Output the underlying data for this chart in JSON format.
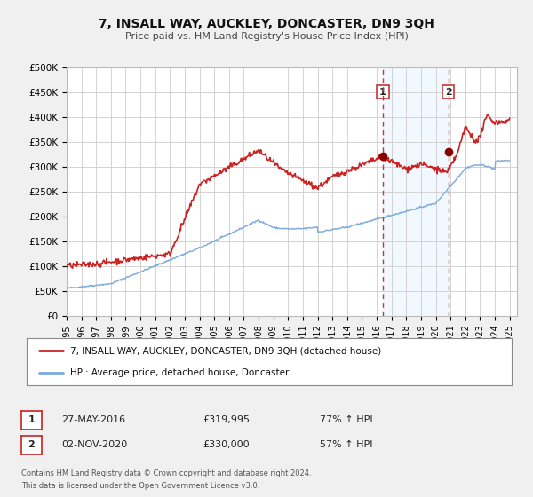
{
  "title": "7, INSALL WAY, AUCKLEY, DONCASTER, DN9 3QH",
  "subtitle": "Price paid vs. HM Land Registry's House Price Index (HPI)",
  "ylim": [
    0,
    500000
  ],
  "yticks": [
    0,
    50000,
    100000,
    150000,
    200000,
    250000,
    300000,
    350000,
    400000,
    450000,
    500000
  ],
  "ytick_labels": [
    "£0",
    "£50K",
    "£100K",
    "£150K",
    "£200K",
    "£250K",
    "£300K",
    "£350K",
    "£400K",
    "£450K",
    "£500K"
  ],
  "xlim_start": 1995.0,
  "xlim_end": 2025.5,
  "xticks": [
    1995,
    1996,
    1997,
    1998,
    1999,
    2000,
    2001,
    2002,
    2003,
    2004,
    2005,
    2006,
    2007,
    2008,
    2009,
    2010,
    2011,
    2012,
    2013,
    2014,
    2015,
    2016,
    2017,
    2018,
    2019,
    2020,
    2021,
    2022,
    2023,
    2024,
    2025
  ],
  "hpi_line_color": "#7aaadd",
  "property_line_color": "#cc2222",
  "marker_color": "#880000",
  "point1_x": 2016.41,
  "point1_y": 319995,
  "point2_x": 2020.84,
  "point2_y": 330000,
  "vline1_x": 2016.41,
  "vline2_x": 2020.84,
  "vline_color": "#cc3333",
  "annotation1_label": "1",
  "annotation2_label": "2",
  "legend_line1": "7, INSALL WAY, AUCKLEY, DONCASTER, DN9 3QH (detached house)",
  "legend_line2": "HPI: Average price, detached house, Doncaster",
  "table_row1_num": "1",
  "table_row1_date": "27-MAY-2016",
  "table_row1_price": "£319,995",
  "table_row1_hpi": "77% ↑ HPI",
  "table_row2_num": "2",
  "table_row2_date": "02-NOV-2020",
  "table_row2_price": "£330,000",
  "table_row2_hpi": "57% ↑ HPI",
  "footnote1": "Contains HM Land Registry data © Crown copyright and database right 2024.",
  "footnote2": "This data is licensed under the Open Government Licence v3.0.",
  "bg_color": "#f0f0f0",
  "plot_bg_color": "#ffffff",
  "grid_color": "#cccccc",
  "highlight_bg_color": "#ddeeff"
}
